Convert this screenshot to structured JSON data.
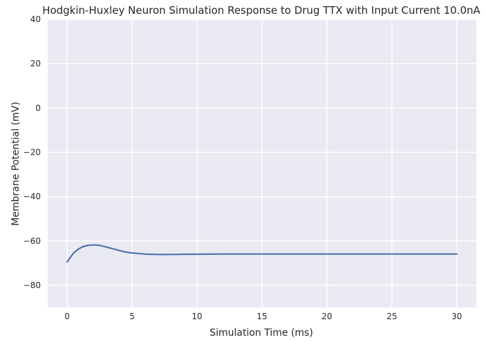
{
  "chart_data": {
    "type": "line",
    "title": "Hodgkin-Huxley Neuron Simulation Response to Drug TTX with Input Current 10.0nA",
    "xlabel": "Simulation Time (ms)",
    "ylabel": "Membrane Potential (mV)",
    "xlim": [
      -1.5,
      31.5
    ],
    "ylim": [
      -90,
      40
    ],
    "xticks": [
      0,
      5,
      10,
      15,
      20,
      25,
      30
    ],
    "yticks": [
      40,
      20,
      0,
      -20,
      -40,
      -60,
      -80
    ],
    "x_tick_labels": [
      "0",
      "5",
      "10",
      "15",
      "20",
      "25",
      "30"
    ],
    "y_tick_labels": [
      "40",
      "20",
      "0",
      "−20",
      "−40",
      "−60",
      "−80"
    ],
    "grid": true,
    "series": [
      {
        "color": "#4c72b0",
        "x": [
          0,
          0.5,
          1,
          1.5,
          2,
          2.5,
          3,
          3.5,
          4,
          4.5,
          5,
          6,
          7,
          8,
          9,
          10,
          12,
          15,
          20,
          25,
          30
        ],
        "y": [
          -69.4,
          -65.5,
          -63.2,
          -62.1,
          -61.8,
          -62.0,
          -62.7,
          -63.5,
          -64.3,
          -65.0,
          -65.4,
          -65.9,
          -66.1,
          -66.1,
          -66.0,
          -66.0,
          -65.9,
          -65.9,
          -65.9,
          -65.9,
          -65.9
        ]
      }
    ]
  },
  "style": {
    "background": "#eaeaf2",
    "grid_color": "#ffffff"
  }
}
